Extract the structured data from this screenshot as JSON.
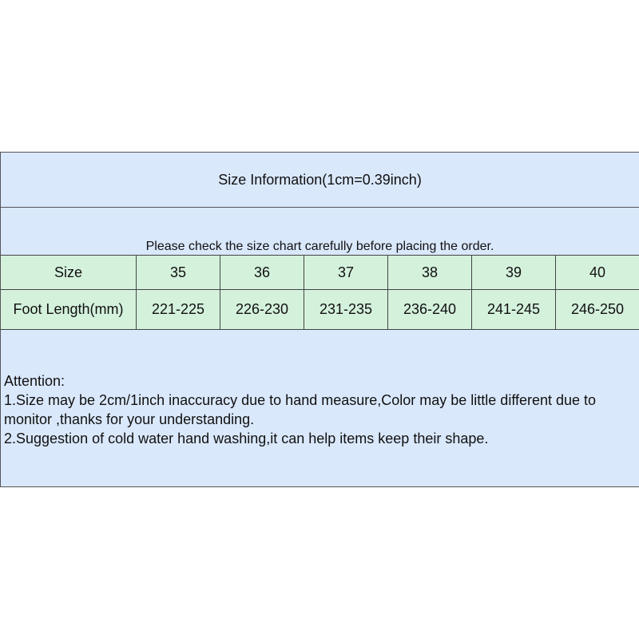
{
  "title": "Size Information(1cm=0.39inch)",
  "note": "Please check the size chart carefully before placing the order.",
  "table": {
    "header": [
      "Size",
      "35",
      "36",
      "37",
      "38",
      "39",
      "40"
    ],
    "row": [
      "Foot Length(mm)",
      "221-225",
      "226-230",
      "231-235",
      "236-240",
      "241-245",
      "246-250"
    ]
  },
  "attention": {
    "heading": "Attention:",
    "lines": [
      "1.Size may be 2cm/1inch inaccuracy due to hand measure,Color may be little different due to monitor ,thanks for your understanding.",
      "2.Suggestion of cold water hand washing,it can help items keep their shape."
    ]
  },
  "colors": {
    "blue": "#dae8fc",
    "green": "#d4f1dc"
  }
}
